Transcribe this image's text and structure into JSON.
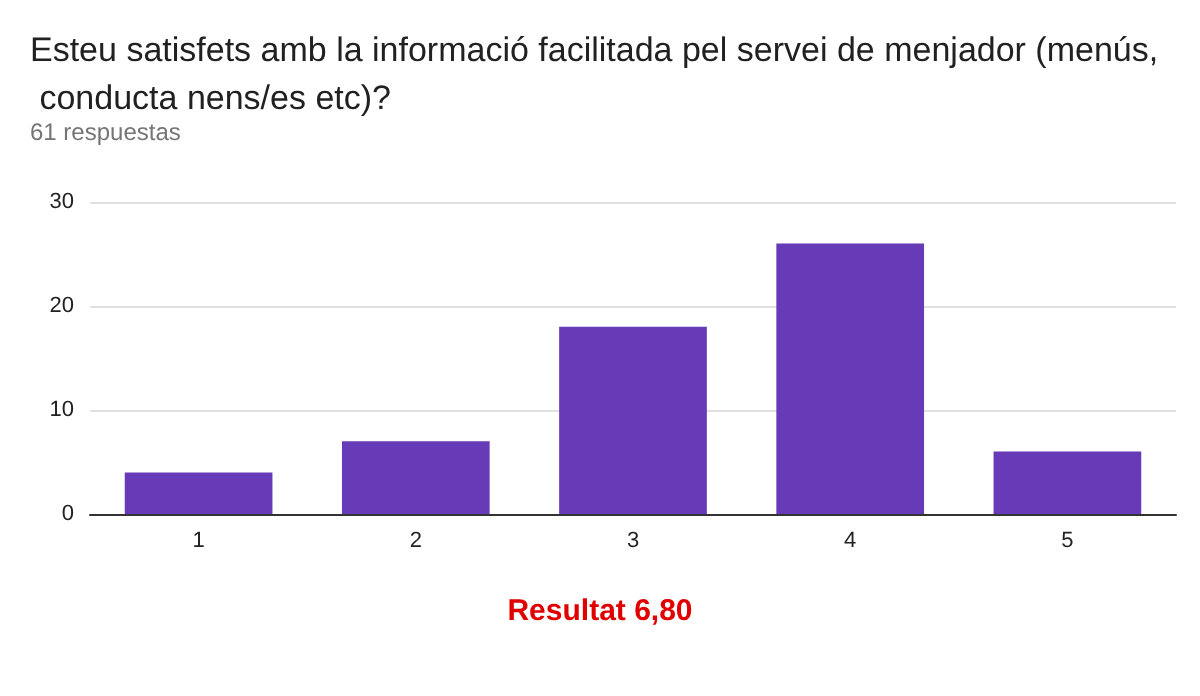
{
  "chart_data": {
    "type": "bar",
    "title": "Esteu satisfets amb la informació facilitada pel servei de menjador (menús, conducta nens/es etc)?",
    "subtitle": "61 respuestas",
    "categories": [
      "1",
      "2",
      "3",
      "4",
      "5"
    ],
    "values": [
      4,
      7,
      18,
      26,
      6
    ],
    "color": "#673ab7",
    "ylim": [
      0,
      30
    ],
    "yticks": [
      0,
      10,
      20,
      30
    ],
    "grid": "y",
    "annotations": [
      "Resultat 6,80"
    ]
  }
}
